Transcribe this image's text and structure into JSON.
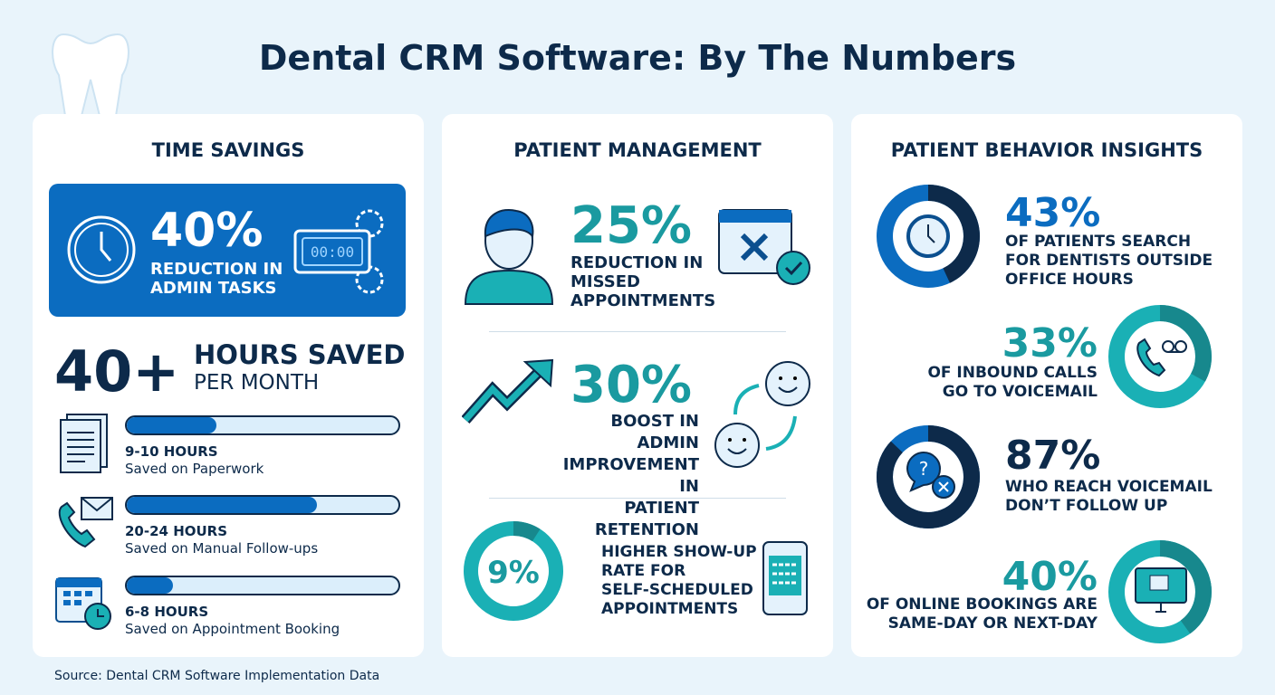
{
  "title": "Dental CRM Software: By The Numbers",
  "time_savings": {
    "heading": "TIME SAVINGS",
    "highlight_value": "40%",
    "highlight_label_1": "REDUCTION IN",
    "highlight_label_2": "ADMIN TASKS",
    "clock_display": "00:00",
    "hours_value": "40+",
    "hours_label": "HOURS SAVED",
    "hours_sub": "PER MONTH",
    "items": [
      {
        "hours": "9-10 HOURS",
        "label": "Saved on Paperwork",
        "progress": 0.33,
        "icon": "documents-icon"
      },
      {
        "hours": "20-24 HOURS",
        "label": "Saved on Manual Follow-ups",
        "progress": 0.7,
        "icon": "phone-mail-icon"
      },
      {
        "hours": "6-8 HOURS",
        "label": "Saved on Appointment Booking",
        "progress": 0.17,
        "icon": "calendar-clock-icon"
      }
    ]
  },
  "patient_management": {
    "heading": "PATIENT MANAGEMENT",
    "stats": [
      {
        "value": "25%",
        "lines": [
          "REDUCTION IN",
          "MISSED",
          "APPOINTMENTS"
        ]
      },
      {
        "value": "30%",
        "lines": [
          "BOOST IN ADMIN",
          "IMPROVEMENT IN",
          "PATIENT RETENTION"
        ]
      },
      {
        "value": "9%",
        "lines": [
          "HIGHER SHOW-UP",
          "RATE FOR",
          "SELF-SCHEDULED",
          "APPOINTMENTS"
        ]
      }
    ]
  },
  "behavior": {
    "heading": "PATIENT BEHAVIOR INSIGHTS",
    "stats": [
      {
        "value": "43%",
        "lines": [
          "OF PATIENTS SEARCH",
          "FOR DENTISTS OUTSIDE",
          "OFFICE HOURS"
        ],
        "percent": 43,
        "color": "#0b6cc0"
      },
      {
        "value": "33%",
        "lines": [
          "OF INBOUND CALLS",
          "GO TO VOICEMAIL"
        ],
        "percent": 33,
        "color": "#1ab0b5"
      },
      {
        "value": "87%",
        "lines": [
          "WHO REACH VOICEMAIL",
          "DON’T FOLLOW UP"
        ],
        "percent": 87,
        "color": "#0d2a4a"
      },
      {
        "value": "40%",
        "lines": [
          "OF ONLINE BOOKINGS ARE",
          "SAME-DAY OR NEXT-DAY"
        ],
        "percent": 40,
        "color": "#1ab0b5"
      }
    ]
  },
  "source": "Source: Dental CRM Software Implementation Data",
  "colors": {
    "navy": "#0d2a4a",
    "blue": "#0b6cc0",
    "teal": "#1a9aa0",
    "background": "#e9f4fb"
  }
}
